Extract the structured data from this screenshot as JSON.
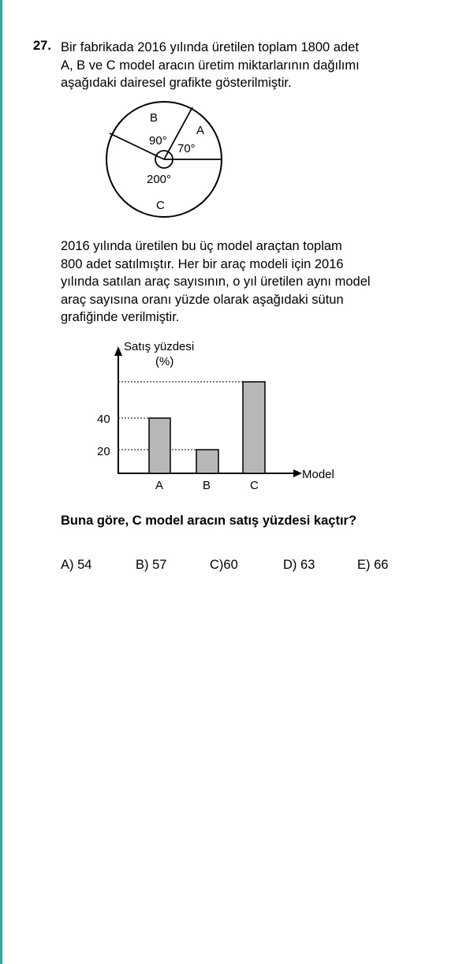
{
  "question": {
    "number": "27.",
    "intro_lines": [
      "Bir fabrikada 2016 yılında üretilen toplam 1800 adet",
      "A, B ve C model aracın üretim miktarlarının dağılımı",
      "aşağıdaki dairesel grafikte gösterilmiştir."
    ],
    "body_lines": [
      "2016 yılında üretilen bu üç model araçtan toplam",
      "800 adet satılmıştır. Her bir araç modeli için 2016",
      "yılında satılan araç sayısının, o yıl üretilen aynı model",
      "araç sayısına oranı yüzde olarak aşağıdaki sütun",
      "grafiğinde verilmiştir."
    ],
    "prompt": "Buna göre, C model aracın satış yüzdesi kaçtır?",
    "options": [
      {
        "letter": "A)",
        "value": "54"
      },
      {
        "letter": "B)",
        "value": "57"
      },
      {
        "letter": "C)",
        "value": "60"
      },
      {
        "letter": "D)",
        "value": "63"
      },
      {
        "letter": "E)",
        "value": "66"
      }
    ]
  },
  "colors": {
    "accent_border": "#21b3a4",
    "bar_fill": "#b7b7b7"
  },
  "chart_data": [
    {
      "type": "pie",
      "categories": [
        "A",
        "B",
        "C"
      ],
      "values": [
        70,
        90,
        200
      ],
      "value_labels": [
        "70°",
        "90°",
        "200°"
      ],
      "unit": "degrees"
    },
    {
      "type": "bar",
      "categories": [
        "A",
        "B",
        "C"
      ],
      "values": [
        40,
        20,
        null
      ],
      "ylabel_line1": "Satış yüzdesi",
      "ylabel_line2": "(%)",
      "xlabel": "Model",
      "yticks": [
        "20",
        "40"
      ],
      "note": "Bar C value unknown (asked); drawn taller than A with unlabelled dashed level line",
      "grid": false
    }
  ]
}
